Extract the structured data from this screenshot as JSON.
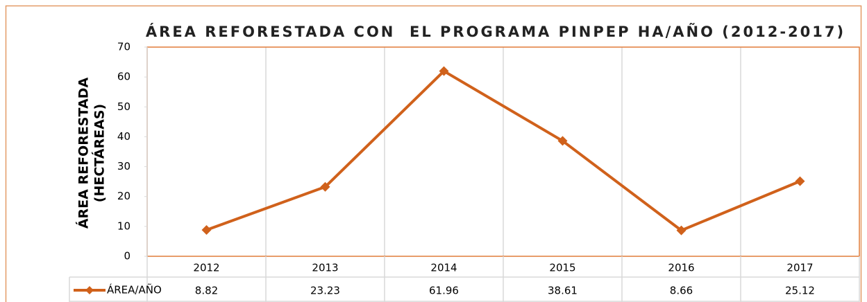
{
  "chart_data": {
    "type": "line",
    "title": "ÁREA REFORESTADA CON  EL PROGRAMA PINPEP HA/AÑO (2012-2017)",
    "y_label": [
      "ÁREA REFORESTADA",
      "(HECTÁREAS)"
    ],
    "categories": [
      "2012",
      "2013",
      "2014",
      "2015",
      "2016",
      "2017"
    ],
    "series": [
      {
        "name": "ÁREA/AÑO",
        "color": "#d0611b",
        "values": [
          8.82,
          23.23,
          61.96,
          38.61,
          8.66,
          25.12
        ]
      }
    ],
    "ylim": [
      0,
      70
    ],
    "yticks": [
      0,
      10,
      20,
      30,
      40,
      50,
      60,
      70
    ],
    "data_table": true
  }
}
